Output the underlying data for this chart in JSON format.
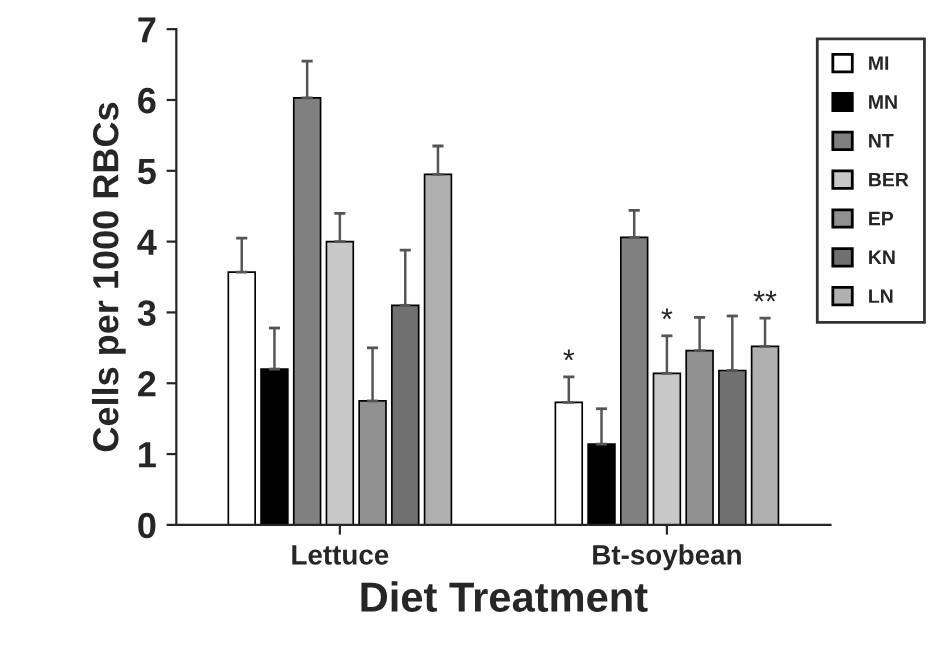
{
  "chart_data": {
    "type": "bar",
    "xlabel": "Diet Treatment",
    "ylabel": "Cells per 1000 RBCs",
    "categories": [
      "Lettuce",
      "Bt-soybean"
    ],
    "series": [
      {
        "name": "MI",
        "color": "#ffffff",
        "values": [
          3.57,
          1.73
        ],
        "errors": [
          [
            3.57,
            4.05
          ],
          [
            1.73,
            2.09
          ]
        ],
        "value_labels": [
          null,
          "*"
        ]
      },
      {
        "name": "MN",
        "color": "#000000",
        "values": [
          2.2,
          1.14
        ],
        "errors": [
          [
            2.2,
            2.78
          ],
          [
            1.14,
            1.64
          ]
        ]
      },
      {
        "name": "NT",
        "color": "#808080",
        "values": [
          6.03,
          4.06
        ],
        "errors": [
          [
            6.03,
            6.55
          ],
          [
            4.06,
            4.44
          ]
        ]
      },
      {
        "name": "BER",
        "color": "#c8c8c8",
        "values": [
          4.0,
          2.14
        ],
        "errors": [
          [
            4.0,
            4.4
          ],
          [
            2.14,
            2.67
          ]
        ],
        "value_labels": [
          null,
          "*"
        ]
      },
      {
        "name": "EP",
        "color": "#909090",
        "values": [
          1.75,
          2.46
        ],
        "errors": [
          [
            1.75,
            2.5
          ],
          [
            2.46,
            2.93
          ]
        ]
      },
      {
        "name": "KN",
        "color": "#707070",
        "values": [
          3.1,
          2.18
        ],
        "errors": [
          [
            3.1,
            3.88
          ],
          [
            2.18,
            2.95
          ]
        ]
      },
      {
        "name": "LN",
        "color": "#b0b0b0",
        "values": [
          4.95,
          2.52
        ],
        "errors": [
          [
            4.95,
            5.35
          ],
          [
            2.52,
            2.92
          ]
        ],
        "value_labels": [
          null,
          "**"
        ]
      }
    ],
    "ylim": [
      0,
      7
    ],
    "yticks": [
      0,
      1,
      2,
      3,
      4,
      5,
      6,
      7
    ],
    "grid": false,
    "legend": "top right"
  }
}
